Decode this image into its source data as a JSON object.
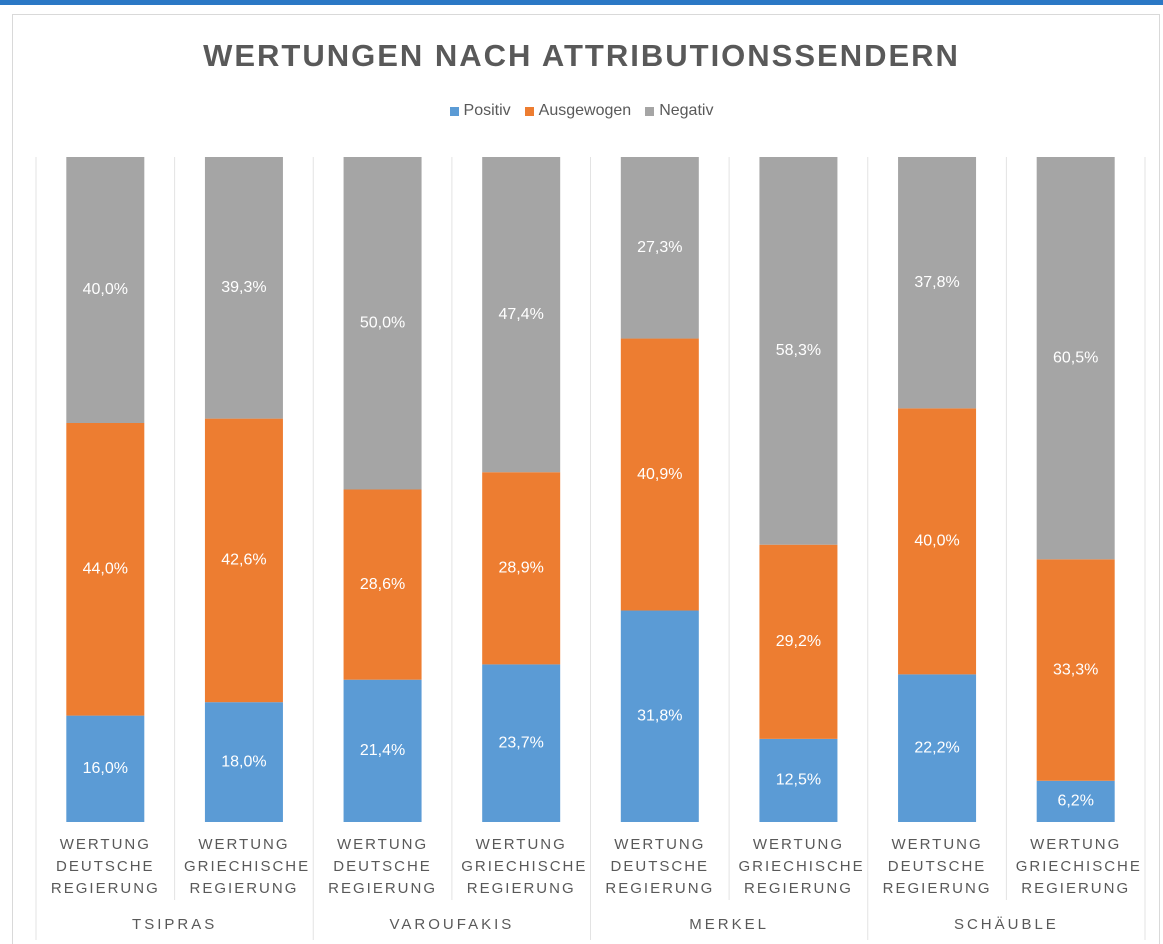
{
  "chart_data": {
    "type": "stacked_bar_100",
    "title": "WERTUNGEN NACH ATTRIBUTIONSSENDERN",
    "categories": [
      "WERTUNG DEUTSCHE REGIERUNG",
      "WERTUNG GRIECHISCHE REGIERUNG",
      "WERTUNG DEUTSCHE REGIERUNG",
      "WERTUNG GRIECHISCHE REGIERUNG",
      "WERTUNG DEUTSCHE REGIERUNG",
      "WERTUNG GRIECHISCHE REGIERUNG",
      "WERTUNG DEUTSCHE REGIERUNG",
      "WERTUNG GRIECHISCHE REGIERUNG"
    ],
    "groups": [
      "TSIPRAS",
      "VAROUFAKIS",
      "MERKEL",
      "SCHÄUBLE"
    ],
    "series": [
      {
        "name": "Positiv",
        "color": "#5b9bd5",
        "values": [
          16.0,
          18.0,
          21.4,
          23.7,
          31.8,
          12.5,
          22.2,
          6.2
        ],
        "value_labels": [
          "16,0%",
          "18,0%",
          "21,4%",
          "23,7%",
          "31,8%",
          "12,5%",
          "22,2%",
          "6,2%"
        ]
      },
      {
        "name": "Ausgewogen",
        "color": "#ed7d31",
        "values": [
          44.0,
          42.6,
          28.6,
          28.9,
          40.9,
          29.2,
          40.0,
          33.3
        ],
        "value_labels": [
          "44,0%",
          "42,6%",
          "28,6%",
          "28,9%",
          "40,9%",
          "29,2%",
          "40,0%",
          "33,3%"
        ]
      },
      {
        "name": "Negativ",
        "color": "#a5a5a5",
        "values": [
          40.0,
          39.3,
          50.0,
          47.4,
          27.3,
          58.3,
          37.8,
          60.5
        ],
        "value_labels": [
          "40,0%",
          "39,3%",
          "50,0%",
          "47,4%",
          "27,3%",
          "58,3%",
          "37,8%",
          "60,5%"
        ]
      }
    ],
    "legend": "top"
  }
}
